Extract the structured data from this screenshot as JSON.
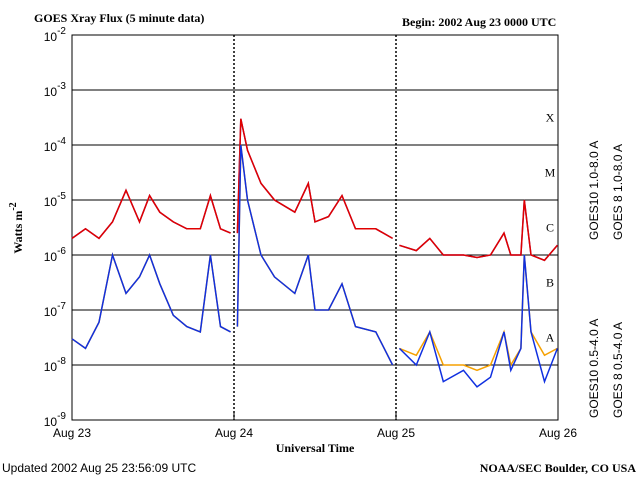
{
  "chart_data": {
    "type": "line",
    "title": "GOES Xray Flux (5 minute data)",
    "subtitle": "Begin:  2002 Aug 23 0000 UTC",
    "x_label": "Universal Time",
    "y_label": {
      "text": "Watts m",
      "exponent": "-2"
    },
    "footer_left": "Updated 2002 Aug 25 23:56:09 UTC",
    "footer_right": "NOAA/SEC Boulder, CO USA",
    "log_y": true,
    "grid": true,
    "xlim": [
      "2002-08-23T00:00",
      "2002-08-26T00:00"
    ],
    "xticks": [
      {
        "value": "2002-08-23T00:00",
        "label": "Aug 23"
      },
      {
        "value": "2002-08-24T00:00",
        "label": "Aug 24"
      },
      {
        "value": "2002-08-25T00:00",
        "label": "Aug 25"
      },
      {
        "value": "2002-08-26T00:00",
        "label": "Aug 26"
      }
    ],
    "ylim": [
      1e-09,
      0.01
    ],
    "yticks": [
      {
        "value": 1e-09,
        "label": "10",
        "exponent": "-9"
      },
      {
        "value": 1e-08,
        "label": "10",
        "exponent": "-8"
      },
      {
        "value": 1e-07,
        "label": "10",
        "exponent": "-7"
      },
      {
        "value": 1e-06,
        "label": "10",
        "exponent": "-6"
      },
      {
        "value": 1e-05,
        "label": "10",
        "exponent": "-5"
      },
      {
        "value": 0.0001,
        "label": "10",
        "exponent": "-4"
      },
      {
        "value": 0.001,
        "label": "10",
        "exponent": "-3"
      },
      {
        "value": 0.01,
        "label": "10",
        "exponent": "-2"
      }
    ],
    "classes": [
      {
        "label": "A",
        "value": 1e-08
      },
      {
        "label": "B",
        "value": 1e-07
      },
      {
        "label": "C",
        "value": 1e-06
      },
      {
        "label": "M",
        "value": 1e-05
      },
      {
        "label": "X",
        "value": 0.0001
      }
    ],
    "x": [
      "2002-08-23T00:00",
      "2002-08-23T02:00",
      "2002-08-23T04:00",
      "2002-08-23T06:00",
      "2002-08-23T08:00",
      "2002-08-23T10:00",
      "2002-08-23T11:30",
      "2002-08-23T13:00",
      "2002-08-23T15:00",
      "2002-08-23T17:00",
      "2002-08-23T19:00",
      "2002-08-23T20:30",
      "2002-08-23T22:00",
      "2002-08-23T23:30",
      "2002-08-24T00:00",
      "2002-08-24T00:30",
      "2002-08-24T01:00",
      "2002-08-24T02:00",
      "2002-08-24T04:00",
      "2002-08-24T06:00",
      "2002-08-24T09:00",
      "2002-08-24T11:00",
      "2002-08-24T12:00",
      "2002-08-24T14:00",
      "2002-08-24T16:00",
      "2002-08-24T18:00",
      "2002-08-24T21:00",
      "2002-08-24T23:30",
      "2002-08-25T00:00",
      "2002-08-25T00:30",
      "2002-08-25T03:00",
      "2002-08-25T05:00",
      "2002-08-25T07:00",
      "2002-08-25T10:00",
      "2002-08-25T12:00",
      "2002-08-25T14:00",
      "2002-08-25T16:00",
      "2002-08-25T17:00",
      "2002-08-25T18:30",
      "2002-08-25T19:00",
      "2002-08-25T20:00",
      "2002-08-25T22:00",
      "2002-08-25T23:55"
    ],
    "series": [
      {
        "name": "GOES10 1.0-8.0 A",
        "color": "#7030a0",
        "legend_group": "long",
        "values": [
          2e-06,
          3e-06,
          2e-06,
          4e-06,
          1.5e-05,
          4e-06,
          1.2e-05,
          6e-06,
          4e-06,
          3e-06,
          3e-06,
          1.2e-05,
          3e-06,
          2.5e-06,
          null,
          2.5e-06,
          0.0003,
          8e-05,
          2e-05,
          1e-05,
          6e-06,
          2e-05,
          4e-06,
          5e-06,
          1.2e-05,
          3e-06,
          3e-06,
          2e-06,
          null,
          1.5e-06,
          1.2e-06,
          2e-06,
          1e-06,
          1e-06,
          9e-07,
          1e-06,
          2.5e-06,
          1e-06,
          1e-06,
          1e-05,
          1e-06,
          8e-07,
          1.5e-06
        ]
      },
      {
        "name": "GOES 8 1.0-8.0 A",
        "color": "#e00000",
        "legend_group": "long",
        "values": [
          2e-06,
          3e-06,
          2e-06,
          4e-06,
          1.5e-05,
          4e-06,
          1.2e-05,
          6e-06,
          4e-06,
          3e-06,
          3e-06,
          1.2e-05,
          3e-06,
          2.5e-06,
          null,
          2.5e-06,
          0.0003,
          8e-05,
          2e-05,
          1e-05,
          6e-06,
          2e-05,
          4e-06,
          5e-06,
          1.2e-05,
          3e-06,
          3e-06,
          2e-06,
          null,
          1.5e-06,
          1.2e-06,
          2e-06,
          1e-06,
          1e-06,
          9e-07,
          1e-06,
          2.5e-06,
          1e-06,
          1e-06,
          1e-05,
          1e-06,
          8e-07,
          1.5e-06
        ]
      },
      {
        "name": "GOES10 0.5-4.0 A",
        "color": "#f5a000",
        "legend_group": "short",
        "values": [
          3e-08,
          2e-08,
          6e-08,
          1e-06,
          2e-07,
          4e-07,
          1e-06,
          3e-07,
          8e-08,
          5e-08,
          4e-08,
          1e-06,
          5e-08,
          4e-08,
          null,
          5e-08,
          0.0001,
          1e-05,
          1e-06,
          4e-07,
          2e-07,
          1e-06,
          1e-07,
          1e-07,
          3e-07,
          5e-08,
          4e-08,
          1e-08,
          null,
          2e-08,
          1.5e-08,
          4e-08,
          1e-08,
          1e-08,
          8e-09,
          1e-08,
          4e-08,
          1e-08,
          2e-08,
          1e-06,
          4e-08,
          1.5e-08,
          2e-08
        ]
      },
      {
        "name": "GOES 8 0.5-4.0 A",
        "color": "#1030e0",
        "legend_group": "short",
        "values": [
          3e-08,
          2e-08,
          6e-08,
          1e-06,
          2e-07,
          4e-07,
          1e-06,
          3e-07,
          8e-08,
          5e-08,
          4e-08,
          1e-06,
          5e-08,
          4e-08,
          null,
          5e-08,
          0.0001,
          1e-05,
          1e-06,
          4e-07,
          2e-07,
          1e-06,
          1e-07,
          1e-07,
          3e-07,
          5e-08,
          4e-08,
          1e-08,
          null,
          2e-08,
          1e-08,
          4e-08,
          5e-09,
          8e-09,
          4e-09,
          6e-09,
          4e-08,
          8e-09,
          2e-08,
          1e-06,
          4e-08,
          5e-09,
          2e-08
        ]
      }
    ]
  }
}
